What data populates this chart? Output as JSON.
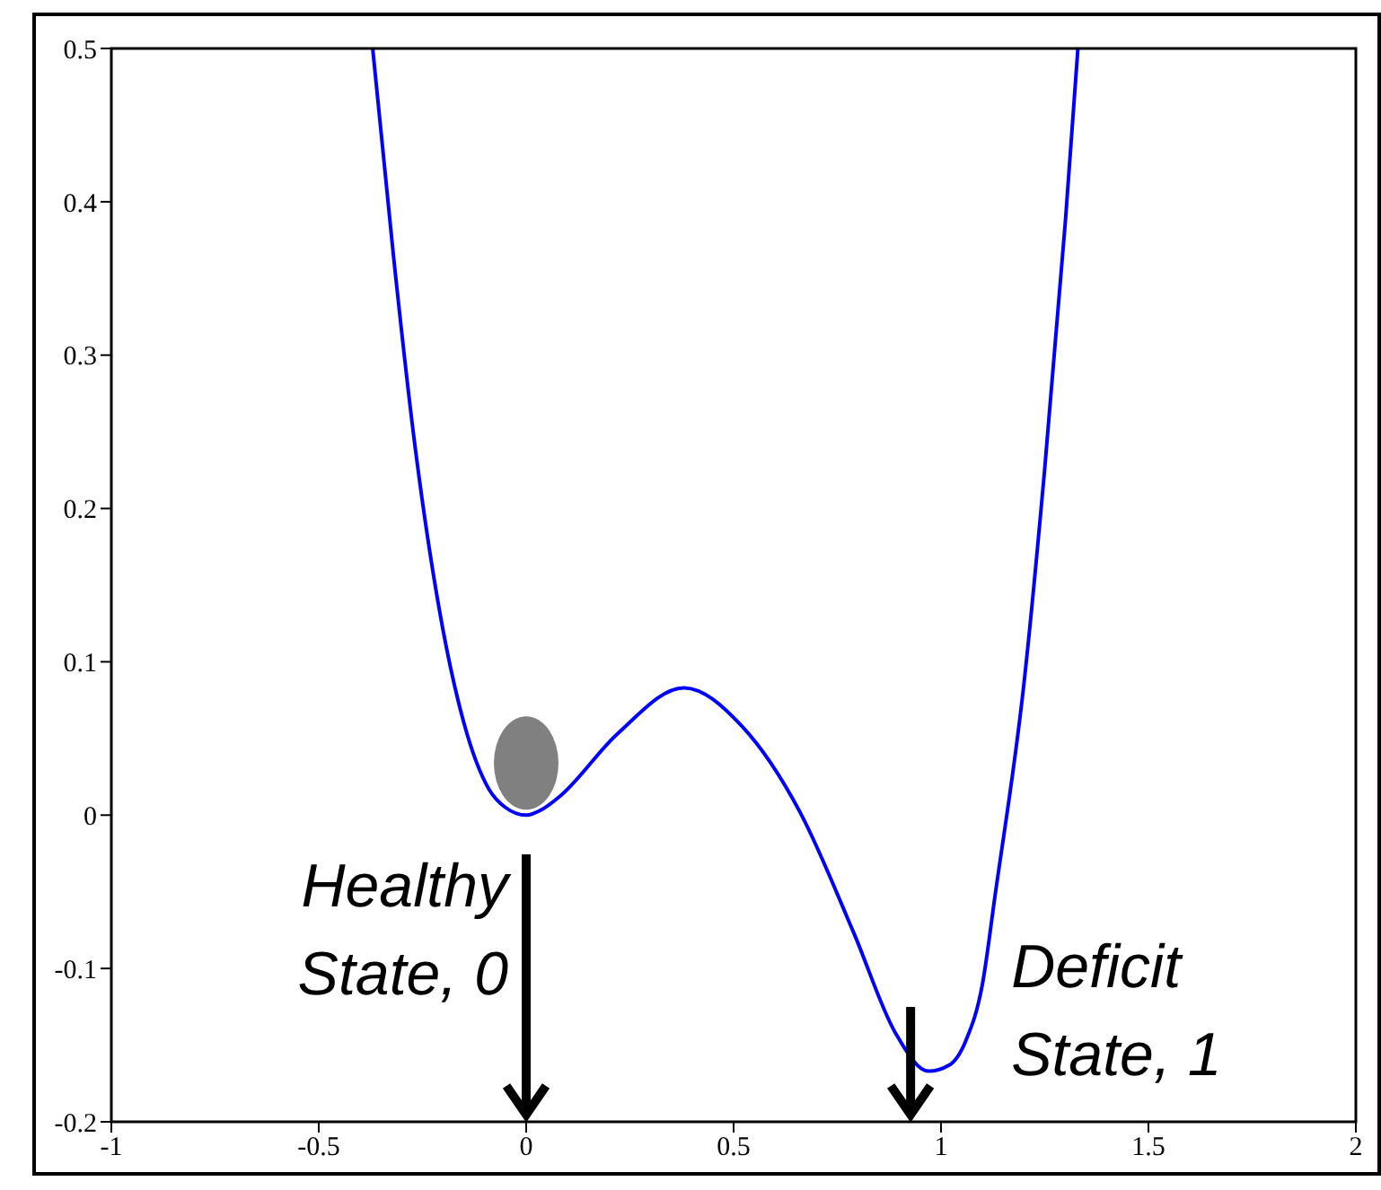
{
  "chart_data": {
    "type": "line",
    "x": [
      -0.37,
      -0.32,
      -0.27,
      -0.21,
      -0.15,
      -0.09,
      -0.05,
      0,
      0.04,
      0.08,
      0.22,
      0.38,
      0.52,
      0.66,
      0.79,
      0.89,
      0.97,
      1.02,
      1.06,
      1.1,
      1.13,
      1.2,
      1.25,
      1.3,
      1.33
    ],
    "series": [
      {
        "color": "#0000ff",
        "values": [
          0.5,
          0.365,
          0.245,
          0.135,
          0.06,
          0.017,
          0.005,
          0,
          0.004,
          0.012,
          0.053,
          0.083,
          0.058,
          0.002,
          -0.077,
          -0.142,
          -0.167,
          -0.163,
          -0.147,
          -0.11,
          -0.053,
          0.086,
          0.226,
          0.388,
          0.5
        ]
      }
    ],
    "xlim": [
      -1,
      2
    ],
    "ylim": [
      -0.2,
      0.5
    ],
    "xticks": [
      -1,
      -0.5,
      0,
      0.5,
      1,
      1.5,
      2
    ],
    "yticks": [
      -0.2,
      -0.1,
      0,
      0.1,
      0.2,
      0.3,
      0.4,
      0.5
    ],
    "grid": false,
    "legend": false,
    "marker": "none",
    "line_style": "solid",
    "annotations": [
      "Healthy State, 0",
      "Deficit State, 1"
    ]
  }
}
